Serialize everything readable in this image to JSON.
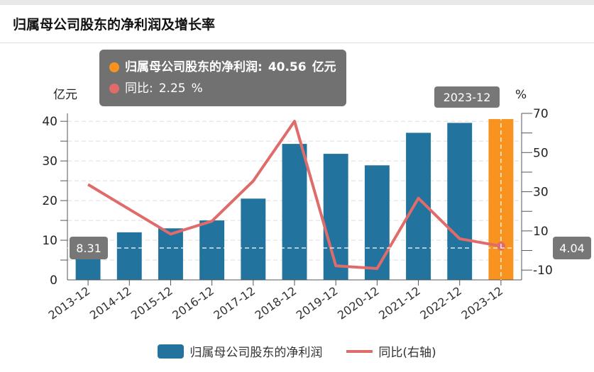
{
  "header": {
    "title": "归属母公司股东的净利润及增长率"
  },
  "chart_data": {
    "type": "bar+line",
    "title": "归属母公司股东的净利润及增长率",
    "categories": [
      "2013-12",
      "2014-12",
      "2015-12",
      "2016-12",
      "2017-12",
      "2018-12",
      "2019-12",
      "2020-12",
      "2021-12",
      "2022-12",
      "2023-12"
    ],
    "series": [
      {
        "name": "归属母公司股东的净利润",
        "type": "bar",
        "axis": "left",
        "values": [
          9.6,
          12.0,
          13.0,
          15.0,
          20.5,
          34.3,
          31.8,
          28.9,
          37.1,
          39.6,
          40.56
        ],
        "color": "#22749f",
        "highlight_color": "#f7931e",
        "highlight_index": 10
      },
      {
        "name": "同比(右轴)",
        "type": "line",
        "axis": "right",
        "values": [
          33.7,
          21,
          8.4,
          15,
          35.5,
          66,
          -7.8,
          -9.2,
          26.7,
          6,
          2.25
        ],
        "color": "#e06b6b"
      }
    ],
    "left_axis": {
      "label": "亿元",
      "range": [
        0,
        42
      ],
      "ticks": [
        0,
        10,
        20,
        30,
        40
      ],
      "tick_labels": [
        "0",
        "10",
        "20",
        "30",
        "40"
      ],
      "minor_step": 5
    },
    "right_axis": {
      "label": "%",
      "range": [
        -15,
        70
      ],
      "ticks": [
        -10,
        10,
        30,
        50,
        70
      ],
      "tick_labels": [
        "-10",
        "10",
        "30",
        "50",
        "70"
      ]
    },
    "grid": true,
    "legend": {
      "position": "bottom",
      "items": [
        "归属母公司股东的净利润",
        "同比(右轴)"
      ]
    },
    "crosshair": {
      "left_value": "8.31",
      "right_value": "4.04",
      "category": "2023-12"
    },
    "tooltip": {
      "rows": [
        {
          "label": "归属母公司股东的净利润:",
          "value": "40.56",
          "unit": "亿元",
          "color": "#f7931e"
        },
        {
          "label": "同比:",
          "value": "2.25",
          "unit": "%",
          "color": "#e06b6b"
        }
      ]
    }
  }
}
